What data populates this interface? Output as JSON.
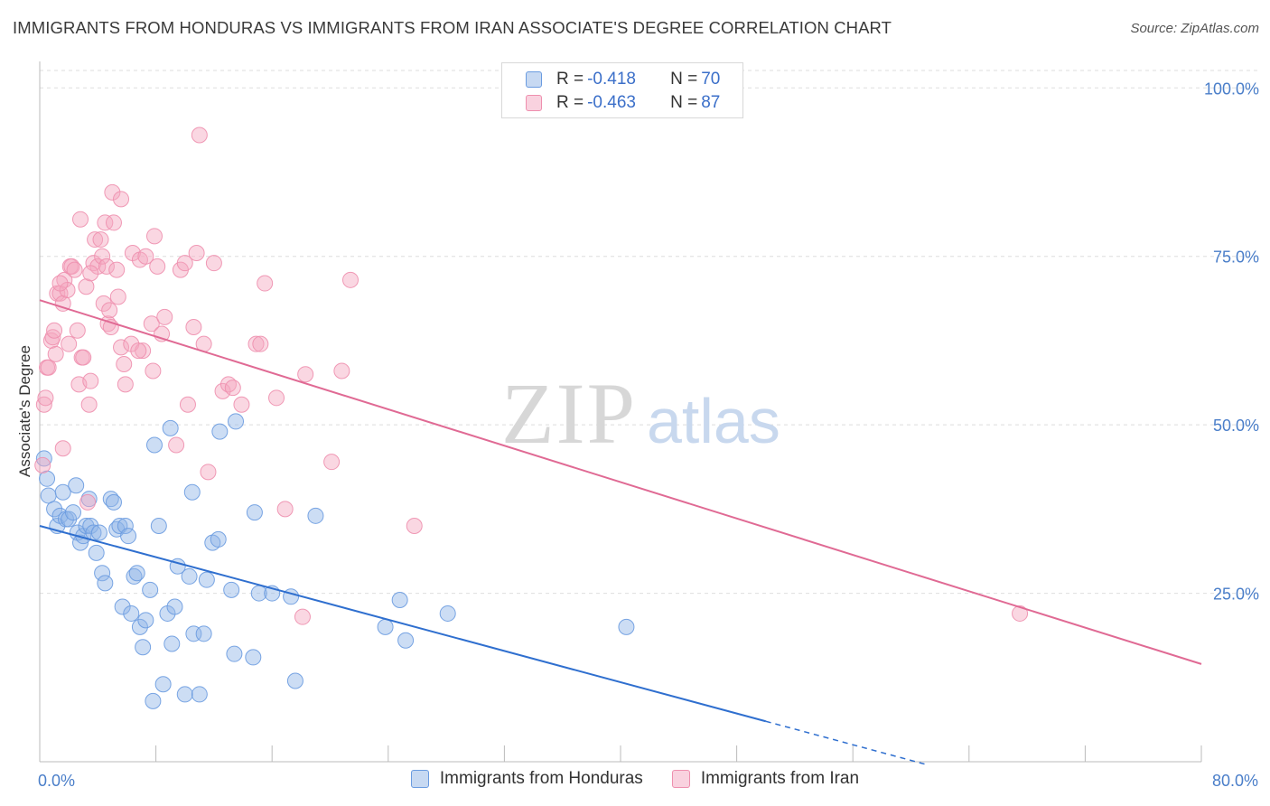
{
  "title": "IMMIGRANTS FROM HONDURAS VS IMMIGRANTS FROM IRAN ASSOCIATE'S DEGREE CORRELATION CHART",
  "source": "Source: ZipAtlas.com",
  "watermark": {
    "zip": "ZIP",
    "atlas": "atlas"
  },
  "legend": {
    "rows": [
      {
        "r_label": "R = ",
        "r_value": "-0.418",
        "n_label": "N = ",
        "n_value": "70",
        "color": "#8fb4e6"
      },
      {
        "r_label": "R = ",
        "r_value": "-0.463",
        "n_label": "N = ",
        "n_value": "87",
        "color": "#f4a6bf"
      }
    ]
  },
  "chart_data": {
    "type": "scatter",
    "title": "IMMIGRANTS FROM HONDURAS VS IMMIGRANTS FROM IRAN ASSOCIATE'S DEGREE CORRELATION CHART",
    "xlabel": "",
    "ylabel": "Associate's Degree",
    "xlim": [
      0,
      80
    ],
    "ylim": [
      0,
      105
    ],
    "x_tick_labels": [
      "0.0%",
      "80.0%"
    ],
    "y_ticks": [
      25,
      50,
      75,
      100
    ],
    "y_tick_labels": [
      "25.0%",
      "50.0%",
      "75.0%",
      "100.0%"
    ],
    "grid": true,
    "legend_position": "top-center",
    "series": [
      {
        "name": "Immigrants from Honduras",
        "color": "#8fb4e6",
        "stroke": "#6a9be0",
        "line_color": "#2f6fcf",
        "trend": {
          "x0": 0,
          "y0": 35,
          "x1": 50,
          "y1": 6,
          "dash_to_x": 61
        },
        "points": [
          [
            0.3,
            45
          ],
          [
            0.5,
            42
          ],
          [
            0.6,
            39.5
          ],
          [
            1.0,
            37.5
          ],
          [
            1.2,
            35
          ],
          [
            1.4,
            36.5
          ],
          [
            1.6,
            40
          ],
          [
            1.8,
            36
          ],
          [
            2.0,
            36
          ],
          [
            2.3,
            37
          ],
          [
            2.5,
            41
          ],
          [
            2.6,
            34
          ],
          [
            2.8,
            32.5
          ],
          [
            3.0,
            33.5
          ],
          [
            3.2,
            35
          ],
          [
            3.4,
            39
          ],
          [
            3.5,
            35
          ],
          [
            3.7,
            34
          ],
          [
            3.9,
            31
          ],
          [
            4.1,
            34
          ],
          [
            4.3,
            28
          ],
          [
            4.5,
            26.5
          ],
          [
            4.9,
            39
          ],
          [
            5.1,
            38.5
          ],
          [
            5.3,
            34.5
          ],
          [
            5.5,
            35
          ],
          [
            5.7,
            23
          ],
          [
            5.9,
            35
          ],
          [
            6.1,
            33.5
          ],
          [
            6.3,
            22
          ],
          [
            6.5,
            27.5
          ],
          [
            6.7,
            28
          ],
          [
            6.9,
            20
          ],
          [
            7.1,
            17
          ],
          [
            7.3,
            21
          ],
          [
            7.6,
            25.5
          ],
          [
            7.8,
            9
          ],
          [
            7.9,
            47
          ],
          [
            8.2,
            35
          ],
          [
            8.5,
            11.5
          ],
          [
            8.8,
            22
          ],
          [
            9.0,
            49.5
          ],
          [
            9.1,
            17.5
          ],
          [
            9.3,
            23
          ],
          [
            9.5,
            29
          ],
          [
            10.0,
            10
          ],
          [
            10.3,
            27.5
          ],
          [
            10.5,
            40
          ],
          [
            10.6,
            19
          ],
          [
            11.0,
            10
          ],
          [
            11.3,
            19
          ],
          [
            11.5,
            27
          ],
          [
            11.9,
            32.5
          ],
          [
            12.3,
            33
          ],
          [
            12.4,
            49
          ],
          [
            13.2,
            25.5
          ],
          [
            13.4,
            16
          ],
          [
            14.7,
            15.5
          ],
          [
            14.8,
            37
          ],
          [
            15.1,
            25
          ],
          [
            16.0,
            25
          ],
          [
            17.3,
            24.5
          ],
          [
            17.6,
            12
          ],
          [
            19.0,
            36.5
          ],
          [
            23.8,
            20
          ],
          [
            24.8,
            24
          ],
          [
            25.2,
            18
          ],
          [
            28.1,
            22
          ],
          [
            40.4,
            20
          ],
          [
            13.5,
            50.5
          ]
        ]
      },
      {
        "name": "Immigrants from Iran",
        "color": "#f4a6bf",
        "stroke": "#ee8fae",
        "line_color": "#e06a94",
        "trend": {
          "x0": 0,
          "y0": 68.5,
          "x1": 80,
          "y1": 14.5
        },
        "points": [
          [
            0.2,
            44
          ],
          [
            0.3,
            53
          ],
          [
            0.4,
            54
          ],
          [
            0.5,
            58.5
          ],
          [
            0.6,
            58.5
          ],
          [
            0.8,
            62.5
          ],
          [
            0.9,
            63
          ],
          [
            1.0,
            64
          ],
          [
            1.1,
            60.5
          ],
          [
            1.2,
            69.5
          ],
          [
            1.4,
            69.5
          ],
          [
            1.6,
            68
          ],
          [
            1.6,
            46.5
          ],
          [
            1.7,
            71.5
          ],
          [
            1.9,
            70
          ],
          [
            2.1,
            73.5
          ],
          [
            2.2,
            73.5
          ],
          [
            2.4,
            73
          ],
          [
            2.6,
            64
          ],
          [
            2.7,
            56
          ],
          [
            2.8,
            80.5
          ],
          [
            2.9,
            60
          ],
          [
            3.0,
            60
          ],
          [
            3.2,
            70.5
          ],
          [
            3.3,
            38.5
          ],
          [
            3.4,
            53
          ],
          [
            3.5,
            56.5
          ],
          [
            3.7,
            74
          ],
          [
            3.8,
            77.5
          ],
          [
            4.0,
            73.5
          ],
          [
            4.2,
            77.5
          ],
          [
            4.3,
            75
          ],
          [
            4.4,
            68
          ],
          [
            4.5,
            80
          ],
          [
            4.6,
            73.5
          ],
          [
            4.7,
            65
          ],
          [
            4.8,
            67
          ],
          [
            4.9,
            64.5
          ],
          [
            5.0,
            84.5
          ],
          [
            5.1,
            80
          ],
          [
            5.3,
            73
          ],
          [
            5.4,
            69
          ],
          [
            5.6,
            61.5
          ],
          [
            5.6,
            83.5
          ],
          [
            5.8,
            59
          ],
          [
            5.9,
            56
          ],
          [
            6.3,
            62
          ],
          [
            6.4,
            75.5
          ],
          [
            6.9,
            74.5
          ],
          [
            7.1,
            61
          ],
          [
            7.3,
            75
          ],
          [
            7.7,
            65
          ],
          [
            7.8,
            58
          ],
          [
            7.9,
            78
          ],
          [
            8.1,
            73.5
          ],
          [
            8.4,
            63.5
          ],
          [
            8.6,
            66
          ],
          [
            9.4,
            47
          ],
          [
            9.7,
            73
          ],
          [
            10.0,
            74
          ],
          [
            10.2,
            53
          ],
          [
            10.6,
            64.5
          ],
          [
            10.8,
            75.5
          ],
          [
            11.0,
            93
          ],
          [
            11.3,
            62
          ],
          [
            11.6,
            43
          ],
          [
            12.0,
            74
          ],
          [
            12.6,
            55
          ],
          [
            13.0,
            56
          ],
          [
            13.3,
            55.5
          ],
          [
            13.9,
            53
          ],
          [
            14.9,
            62
          ],
          [
            15.2,
            62
          ],
          [
            15.5,
            71
          ],
          [
            16.3,
            54
          ],
          [
            16.9,
            37.5
          ],
          [
            18.1,
            21.5
          ],
          [
            18.3,
            57.5
          ],
          [
            20.1,
            44.5
          ],
          [
            20.8,
            58
          ],
          [
            21.4,
            71.5
          ],
          [
            25.8,
            35
          ],
          [
            67.5,
            22
          ],
          [
            3.5,
            72.5
          ],
          [
            2.0,
            62
          ],
          [
            6.8,
            61
          ],
          [
            1.4,
            71
          ]
        ]
      }
    ]
  }
}
